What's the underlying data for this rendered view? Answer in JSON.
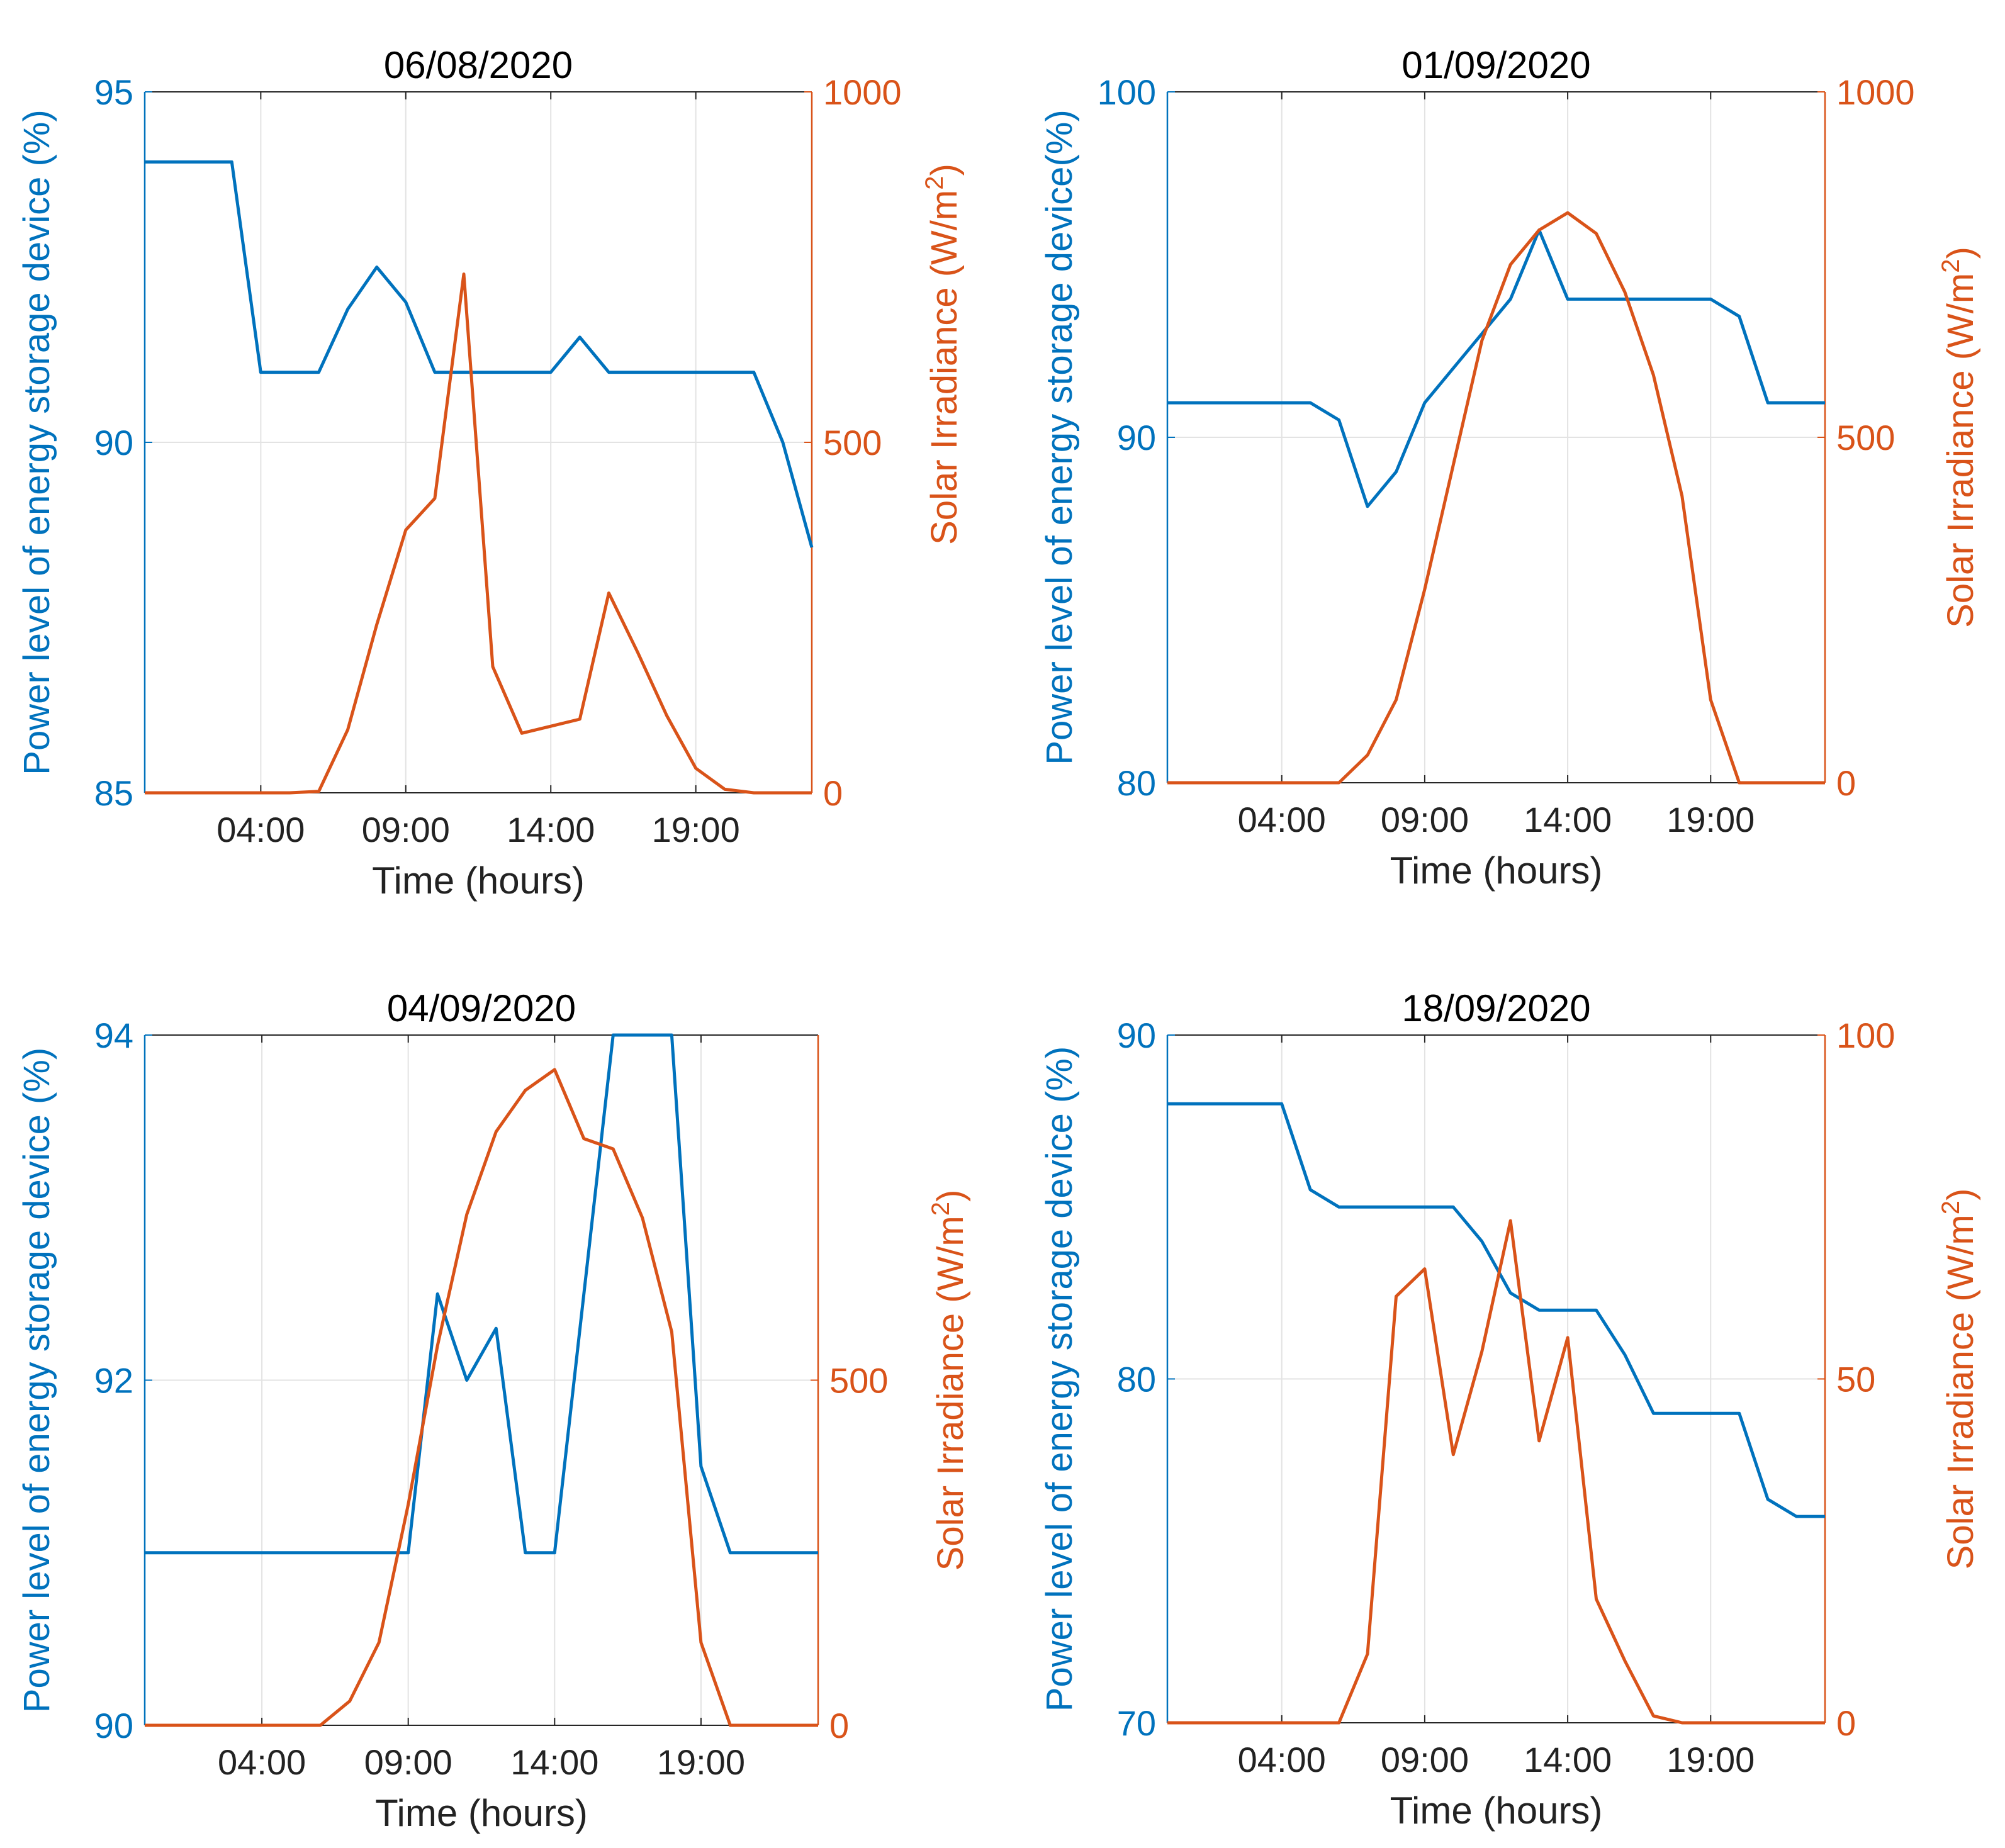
{
  "chart_data": [
    {
      "type": "line",
      "title": "06/08/2020",
      "xlabel": "Time (hours)",
      "ylabel_left": "Power level of energy storage device (%)",
      "ylabel_right": "Solar Irradiance (W/m2)",
      "xlim": [
        0,
        23
      ],
      "x_ticks": [
        4,
        9,
        14,
        19
      ],
      "x_tick_labels": [
        "04:00",
        "09:00",
        "14:00",
        "19:00"
      ],
      "ylim_left": [
        85,
        95
      ],
      "yticks_left": [
        85,
        90,
        95
      ],
      "ylim_right": [
        0,
        1000
      ],
      "yticks_right": [
        0,
        500,
        1000
      ],
      "series": [
        {
          "name": "Power level (%)",
          "axis": "left",
          "color": "#0072BD",
          "x": [
            0,
            1,
            2,
            3,
            4,
            5,
            6,
            7,
            8,
            9,
            10,
            11,
            12,
            13,
            14,
            15,
            16,
            17,
            18,
            19,
            20,
            21,
            22,
            23
          ],
          "values": [
            94,
            94,
            94,
            94,
            91,
            91,
            91,
            91.9,
            92.5,
            92,
            91,
            91,
            91,
            91,
            91,
            91.5,
            91,
            91,
            91,
            91,
            91,
            91,
            90,
            88.5
          ]
        },
        {
          "name": "Solar Irradiance (W/m2)",
          "axis": "right",
          "color": "#D95319",
          "x": [
            0,
            1,
            2,
            3,
            4,
            5,
            6,
            7,
            8,
            9,
            10,
            11,
            12,
            13,
            14,
            15,
            16,
            17,
            18,
            19,
            20,
            21,
            22,
            23
          ],
          "values": [
            0,
            0,
            0,
            0,
            0,
            0,
            2,
            90,
            240,
            375,
            420,
            740,
            180,
            85,
            95,
            105,
            285,
            200,
            110,
            35,
            5,
            0,
            0,
            0
          ]
        }
      ]
    },
    {
      "type": "line",
      "title": "01/09/2020",
      "xlabel": "Time (hours)",
      "ylabel_left": "Power level of energy storage device(%)",
      "ylabel_right": "Solar Irradiance (W/m2)",
      "xlim": [
        0,
        23
      ],
      "x_ticks": [
        4,
        9,
        14,
        19
      ],
      "x_tick_labels": [
        "04:00",
        "09:00",
        "14:00",
        "19:00"
      ],
      "ylim_left": [
        80,
        100
      ],
      "yticks_left": [
        80,
        90,
        100
      ],
      "ylim_right": [
        0,
        1000
      ],
      "yticks_right": [
        0,
        500,
        1000
      ],
      "series": [
        {
          "name": "Power level (%)",
          "axis": "left",
          "color": "#0072BD",
          "x": [
            0,
            1,
            2,
            3,
            4,
            5,
            6,
            7,
            8,
            9,
            10,
            11,
            12,
            13,
            14,
            15,
            16,
            17,
            18,
            19,
            20,
            21,
            22,
            23
          ],
          "values": [
            91,
            91,
            91,
            91,
            91,
            91,
            90.5,
            88,
            89,
            91,
            92,
            93,
            94,
            96,
            94,
            94,
            94,
            94,
            94,
            94,
            93.5,
            91,
            91,
            91
          ]
        },
        {
          "name": "Solar Irradiance (W/m2)",
          "axis": "right",
          "color": "#D95319",
          "x": [
            0,
            1,
            2,
            3,
            4,
            5,
            6,
            7,
            8,
            9,
            10,
            11,
            12,
            13,
            14,
            15,
            16,
            17,
            18,
            19,
            20,
            21,
            22,
            23
          ],
          "values": [
            0,
            0,
            0,
            0,
            0,
            0,
            0,
            40,
            120,
            280,
            460,
            640,
            750,
            800,
            825,
            795,
            710,
            590,
            415,
            120,
            0,
            0,
            0,
            0
          ]
        }
      ]
    },
    {
      "type": "line",
      "title": "04/09/2020",
      "xlabel": "Time (hours)",
      "ylabel_left": "Power level of energy storage device (%)",
      "ylabel_right": "Solar Irradiance (W/m2)",
      "xlim": [
        0,
        23
      ],
      "x_ticks": [
        4,
        9,
        14,
        19
      ],
      "x_tick_labels": [
        "04:00",
        "09:00",
        "14:00",
        "19:00"
      ],
      "ylim_left": [
        90,
        94
      ],
      "yticks_left": [
        90,
        92,
        94
      ],
      "ylim_right": [
        0,
        1000
      ],
      "yticks_right": [
        0,
        500
      ],
      "series": [
        {
          "name": "Power level (%)",
          "axis": "left",
          "color": "#0072BD",
          "x": [
            0,
            1,
            2,
            3,
            4,
            5,
            6,
            7,
            8,
            9,
            10,
            11,
            12,
            13,
            14,
            15,
            16,
            17,
            18,
            19,
            20,
            21,
            22,
            23
          ],
          "values": [
            91,
            91,
            91,
            91,
            91,
            91,
            91,
            91,
            91,
            91,
            92.5,
            92,
            92.3,
            91,
            91,
            92.5,
            94,
            94,
            94,
            91.5,
            91,
            91,
            91,
            91
          ]
        },
        {
          "name": "Solar Irradiance (W/m2)",
          "axis": "right",
          "color": "#D95319",
          "x": [
            0,
            1,
            2,
            3,
            4,
            5,
            6,
            7,
            8,
            9,
            10,
            11,
            12,
            13,
            14,
            15,
            16,
            17,
            18,
            19,
            20,
            21,
            22,
            23
          ],
          "values": [
            0,
            0,
            0,
            0,
            0,
            0,
            0,
            35,
            120,
            320,
            550,
            740,
            860,
            920,
            950,
            850,
            835,
            735,
            570,
            120,
            0,
            0,
            0,
            0
          ]
        }
      ]
    },
    {
      "type": "line",
      "title": "18/09/2020",
      "xlabel": "Time (hours)",
      "ylabel_left": "Power level of energy storage device (%)",
      "ylabel_right": "Solar Irradiance (W/m2)",
      "xlim": [
        0,
        23
      ],
      "x_ticks": [
        4,
        9,
        14,
        19
      ],
      "x_tick_labels": [
        "04:00",
        "09:00",
        "14:00",
        "19:00"
      ],
      "ylim_left": [
        70,
        90
      ],
      "yticks_left": [
        70,
        80,
        90
      ],
      "ylim_right": [
        0,
        100
      ],
      "yticks_right": [
        0,
        50,
        100
      ],
      "series": [
        {
          "name": "Power level (%)",
          "axis": "left",
          "color": "#0072BD",
          "x": [
            0,
            1,
            2,
            3,
            4,
            5,
            6,
            7,
            8,
            9,
            10,
            11,
            12,
            13,
            14,
            15,
            16,
            17,
            18,
            19,
            20,
            21,
            22,
            23
          ],
          "values": [
            88,
            88,
            88,
            88,
            88,
            85.5,
            85,
            85,
            85,
            85,
            85,
            84,
            82.5,
            82,
            82,
            82,
            80.7,
            79,
            79,
            79,
            79,
            76.5,
            76,
            76
          ]
        },
        {
          "name": "Solar Irradiance (W/m2)",
          "axis": "right",
          "color": "#D95319",
          "x": [
            0,
            1,
            2,
            3,
            4,
            5,
            6,
            7,
            8,
            9,
            10,
            11,
            12,
            13,
            14,
            15,
            16,
            17,
            18,
            19,
            20,
            21,
            22,
            23
          ],
          "values": [
            0,
            0,
            0,
            0,
            0,
            0,
            0,
            10,
            62,
            66,
            39,
            54,
            73,
            41,
            56,
            18,
            9,
            1,
            0,
            0,
            0,
            0,
            0,
            0
          ]
        }
      ]
    }
  ]
}
